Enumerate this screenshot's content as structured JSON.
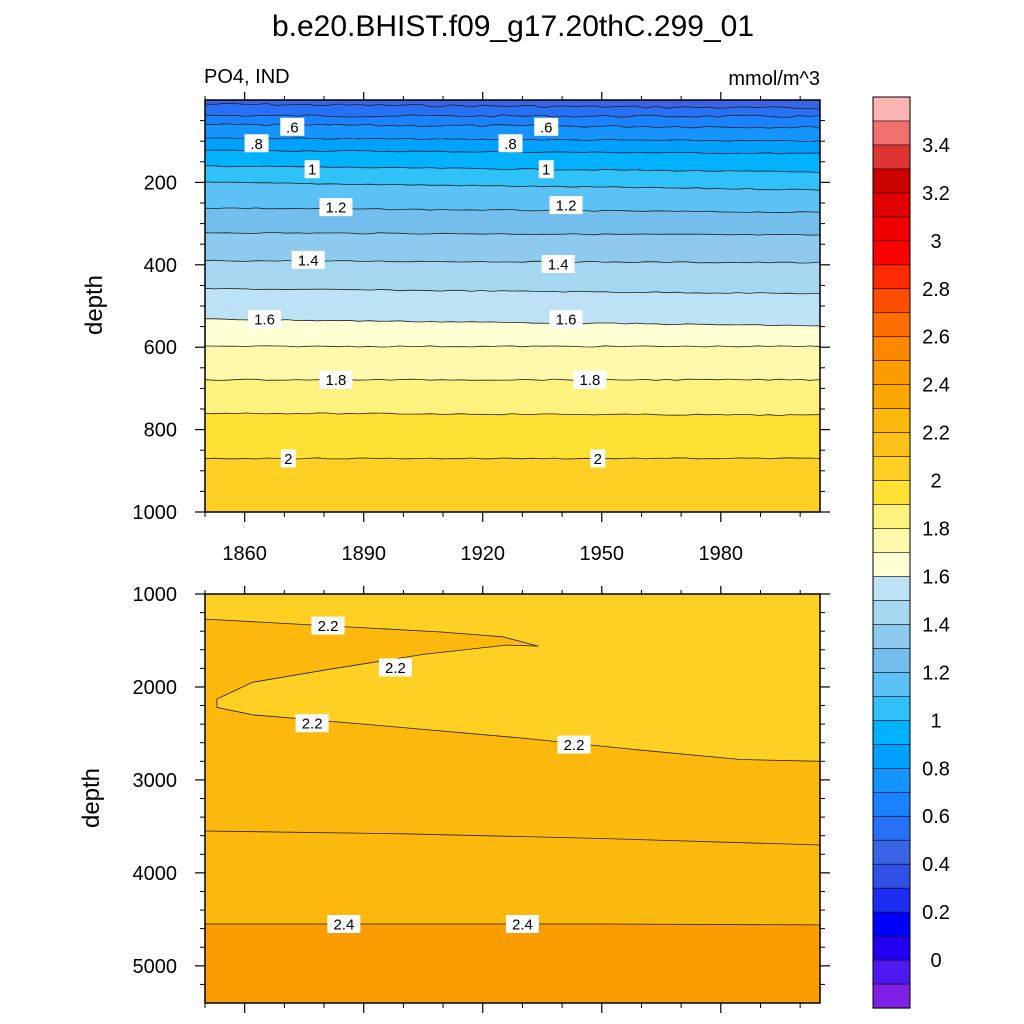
{
  "title": "b.e20.BHIST.f09_g17.20thC.299_01",
  "variable_label": "PO4, IND",
  "units_label": "mmol/m^3",
  "chart_data": [
    {
      "type": "contour",
      "panel": "upper",
      "xlabel": "",
      "ylabel": "depth",
      "xlim": [
        1850,
        2005
      ],
      "ylim": [
        1000,
        0
      ],
      "x_ticks": [
        1860,
        1890,
        1920,
        1950,
        1980
      ],
      "x_tick_labels": [
        "1860",
        "1890",
        "1920",
        "1950",
        "1980"
      ],
      "y_ticks": [
        200,
        400,
        600,
        800,
        1000
      ],
      "y_tick_labels": [
        "200",
        "400",
        "600",
        "800",
        "1000"
      ],
      "contour_depths": [
        {
          "level": 0.5,
          "depths": [
            10,
            20
          ]
        },
        {
          "level": 0.6,
          "depths": [
            38,
            40
          ]
        },
        {
          "level": 0.7,
          "depths": [
            60,
            66
          ]
        },
        {
          "level": 0.8,
          "depths": [
            92,
            100
          ]
        },
        {
          "level": 0.9,
          "depths": [
            122,
            130
          ]
        },
        {
          "level": 1.0,
          "depths": [
            160,
            175
          ]
        },
        {
          "level": 1.1,
          "depths": [
            200,
            218
          ]
        },
        {
          "level": 1.2,
          "depths": [
            262,
            273
          ]
        },
        {
          "level": 1.3,
          "depths": [
            322,
            328
          ]
        },
        {
          "level": 1.4,
          "depths": [
            390,
            395
          ]
        },
        {
          "level": 1.5,
          "depths": [
            458,
            470
          ]
        },
        {
          "level": 1.6,
          "depths": [
            532,
            548
          ]
        },
        {
          "level": 1.7,
          "depths": [
            598,
            598
          ]
        },
        {
          "level": 1.8,
          "depths": [
            679,
            679
          ]
        },
        {
          "level": 1.9,
          "depths": [
            760,
            765
          ]
        },
        {
          "level": 2.0,
          "depths": [
            870,
            870
          ]
        }
      ],
      "line_labels": [
        {
          "text": ".6",
          "x": 1872,
          "y": 65
        },
        {
          "text": ".6",
          "x": 1936,
          "y": 65
        },
        {
          "text": ".8",
          "x": 1863,
          "y": 105
        },
        {
          "text": ".8",
          "x": 1927,
          "y": 105
        },
        {
          "text": "1",
          "x": 1877,
          "y": 168
        },
        {
          "text": "1",
          "x": 1936,
          "y": 168
        },
        {
          "text": "1.2",
          "x": 1883,
          "y": 260
        },
        {
          "text": "1.2",
          "x": 1941,
          "y": 255
        },
        {
          "text": "1.4",
          "x": 1876,
          "y": 388
        },
        {
          "text": "1.4",
          "x": 1939,
          "y": 398
        },
        {
          "text": "1.6",
          "x": 1865,
          "y": 532
        },
        {
          "text": "1.6",
          "x": 1941,
          "y": 532
        },
        {
          "text": "1.8",
          "x": 1883,
          "y": 679
        },
        {
          "text": "1.8",
          "x": 1947,
          "y": 679
        },
        {
          "text": "2",
          "x": 1871,
          "y": 870
        },
        {
          "text": "2",
          "x": 1949,
          "y": 870
        }
      ]
    },
    {
      "type": "contour",
      "panel": "lower",
      "xlabel": "",
      "ylabel": "depth",
      "xlim": [
        1850,
        2005
      ],
      "ylim": [
        5400,
        1000
      ],
      "x_ticks": [
        1860,
        1890,
        1920,
        1950,
        1980
      ],
      "y_ticks": [
        1000,
        2000,
        3000,
        4000,
        5000
      ],
      "y_tick_labels": [
        "1000",
        "2000",
        "3000",
        "4000",
        "5000"
      ],
      "regions": [
        {
          "value": 2.2,
          "note": "above 2.2 contour",
          "color": "#FDD023"
        },
        {
          "value": 2.3,
          "note": "between 2.2 and 2.4 contours",
          "color": "#FCB80C"
        },
        {
          "value": 2.4,
          "note": "below 2.4 contour",
          "color": "#FB9C00"
        }
      ],
      "contour_lines": [
        {
          "level": 2.2,
          "points": [
            [
              1850,
              1270
            ],
            [
              1880,
              1340
            ],
            [
              1910,
              1410
            ],
            [
              1925,
              1460
            ],
            [
              1934,
              1560
            ],
            [
              1926,
              1550
            ],
            [
              1905,
              1650
            ],
            [
              1880,
              1820
            ],
            [
              1862,
              1950
            ],
            [
              1853,
              2130
            ],
            [
              1853,
              2220
            ],
            [
              1862,
              2300
            ],
            [
              1890,
              2400
            ],
            [
              1930,
              2550
            ],
            [
              1960,
              2680
            ],
            [
              1985,
              2780
            ],
            [
              2005,
              2800
            ]
          ]
        },
        {
          "level": 2.3,
          "points": [
            [
              1850,
              3550
            ],
            [
              1900,
              3580
            ],
            [
              1950,
              3630
            ],
            [
              2005,
              3700
            ]
          ]
        },
        {
          "level": 2.4,
          "points": [
            [
              1850,
              4550
            ],
            [
              1900,
              4550
            ],
            [
              1950,
              4550
            ],
            [
              2005,
              4560
            ]
          ]
        }
      ],
      "line_labels": [
        {
          "text": "2.2",
          "x": 1881,
          "y": 1340
        },
        {
          "text": "2.2",
          "x": 1898,
          "y": 1790
        },
        {
          "text": "2.2",
          "x": 1877,
          "y": 2390
        },
        {
          "text": "2.2",
          "x": 1943,
          "y": 2620
        },
        {
          "text": "2.4",
          "x": 1885,
          "y": 4550
        },
        {
          "text": "2.4",
          "x": 1930,
          "y": 4550
        }
      ]
    }
  ],
  "colorbar": {
    "levels": [
      -0.1,
      0.0,
      0.1,
      0.2,
      0.3,
      0.4,
      0.5,
      0.6,
      0.7,
      0.8,
      0.9,
      1.0,
      1.1,
      1.2,
      1.3,
      1.4,
      1.5,
      1.6,
      1.7,
      1.8,
      1.9,
      2.0,
      2.1,
      2.2,
      2.3,
      2.4,
      2.5,
      2.6,
      2.7,
      2.8,
      2.9,
      3.0,
      3.1,
      3.2,
      3.3,
      3.4,
      3.5,
      3.6
    ],
    "colors": [
      "#FFB4B4",
      "#F07070",
      "#DE3434",
      "#CC0000",
      "#E00000",
      "#F20000",
      "#FF0000",
      "#FF2A00",
      "#FF4E00",
      "#FF6E00",
      "#FF8800",
      "#FB9C00",
      "#FBA800",
      "#FCB80C",
      "#FCC21A",
      "#FDD023",
      "#FDE133",
      "#FEF27E",
      "#FEF9AA",
      "#FEFFD2",
      "#BEE2F5",
      "#A5D7F0",
      "#8DCAEE",
      "#73BEEC",
      "#5CC1F4",
      "#2FC1F8",
      "#00B2FF",
      "#00A0FF",
      "#1594FF",
      "#1A82FF",
      "#2870F5",
      "#3A64E6",
      "#3050E6",
      "#1C2CF0",
      "#0000FF",
      "#2000EE",
      "#5018F0",
      "#8020E6"
    ],
    "tick_labels": [
      {
        "text": "3.4",
        "value": 3.4
      },
      {
        "text": "3.2",
        "value": 3.2
      },
      {
        "text": "3",
        "value": 3.0
      },
      {
        "text": "2.8",
        "value": 2.8
      },
      {
        "text": "2.6",
        "value": 2.6
      },
      {
        "text": "2.4",
        "value": 2.4
      },
      {
        "text": "2.2",
        "value": 2.2
      },
      {
        "text": "2",
        "value": 2.0
      },
      {
        "text": "1.8",
        "value": 1.8
      },
      {
        "text": "1.6",
        "value": 1.6
      },
      {
        "text": "1.4",
        "value": 1.4
      },
      {
        "text": "1.2",
        "value": 1.2
      },
      {
        "text": "1",
        "value": 1.0
      },
      {
        "text": "0.8",
        "value": 0.8
      },
      {
        "text": "0.6",
        "value": 0.6
      },
      {
        "text": "0.4",
        "value": 0.4
      },
      {
        "text": "0.2",
        "value": 0.2
      },
      {
        "text": "0",
        "value": 0.0
      }
    ]
  }
}
